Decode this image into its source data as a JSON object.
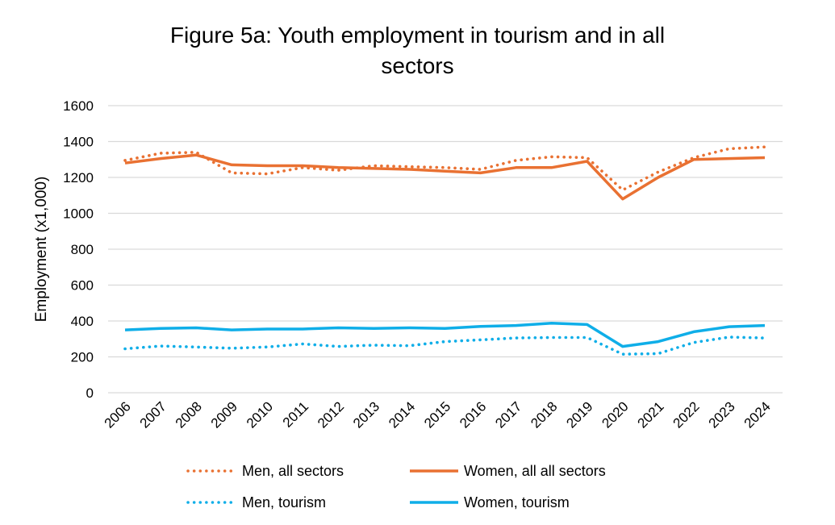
{
  "chart_data": {
    "type": "line",
    "title_line1": "Figure 5a: Youth employment in tourism and in all",
    "title_line2": "sectors",
    "ylabel": "Employment (x1,000)",
    "xlabel": "",
    "ylim": [
      0,
      1600
    ],
    "yticks": [
      "0",
      "200",
      "400",
      "600",
      "800",
      "1000",
      "1200",
      "1400",
      "1600"
    ],
    "ytick_values": [
      0,
      200,
      400,
      600,
      800,
      1000,
      1200,
      1400,
      1600
    ],
    "categories": [
      "2006",
      "2007",
      "2008",
      "2009",
      "2010",
      "2011",
      "2012",
      "2013",
      "2014",
      "2015",
      "2016",
      "2017",
      "2018",
      "2019",
      "2020",
      "2021",
      "2022",
      "2023",
      "2024"
    ],
    "grid": true,
    "legend_position": "bottom",
    "series": [
      {
        "name": "Men, all sectors",
        "color": "#E97132",
        "style": "dotted",
        "values": [
          1295,
          1335,
          1340,
          1225,
          1220,
          1255,
          1240,
          1265,
          1260,
          1255,
          1245,
          1295,
          1315,
          1310,
          1130,
          1230,
          1310,
          1360,
          1370
        ]
      },
      {
        "name": "Women, all all sectors",
        "color": "#E97132",
        "style": "solid",
        "values": [
          1280,
          1305,
          1325,
          1270,
          1265,
          1265,
          1255,
          1250,
          1245,
          1235,
          1225,
          1255,
          1255,
          1290,
          1080,
          1200,
          1300,
          1305,
          1310
        ]
      },
      {
        "name": "Men, tourism",
        "color": "#0FAEE8",
        "style": "dotted",
        "values": [
          245,
          260,
          255,
          248,
          255,
          272,
          258,
          265,
          262,
          285,
          295,
          305,
          308,
          308,
          215,
          218,
          280,
          310,
          305
        ]
      },
      {
        "name": "Women, tourism",
        "color": "#0FAEE8",
        "style": "solid",
        "values": [
          350,
          358,
          362,
          350,
          355,
          355,
          362,
          358,
          362,
          358,
          370,
          375,
          388,
          380,
          258,
          285,
          340,
          368,
          375
        ]
      }
    ]
  }
}
